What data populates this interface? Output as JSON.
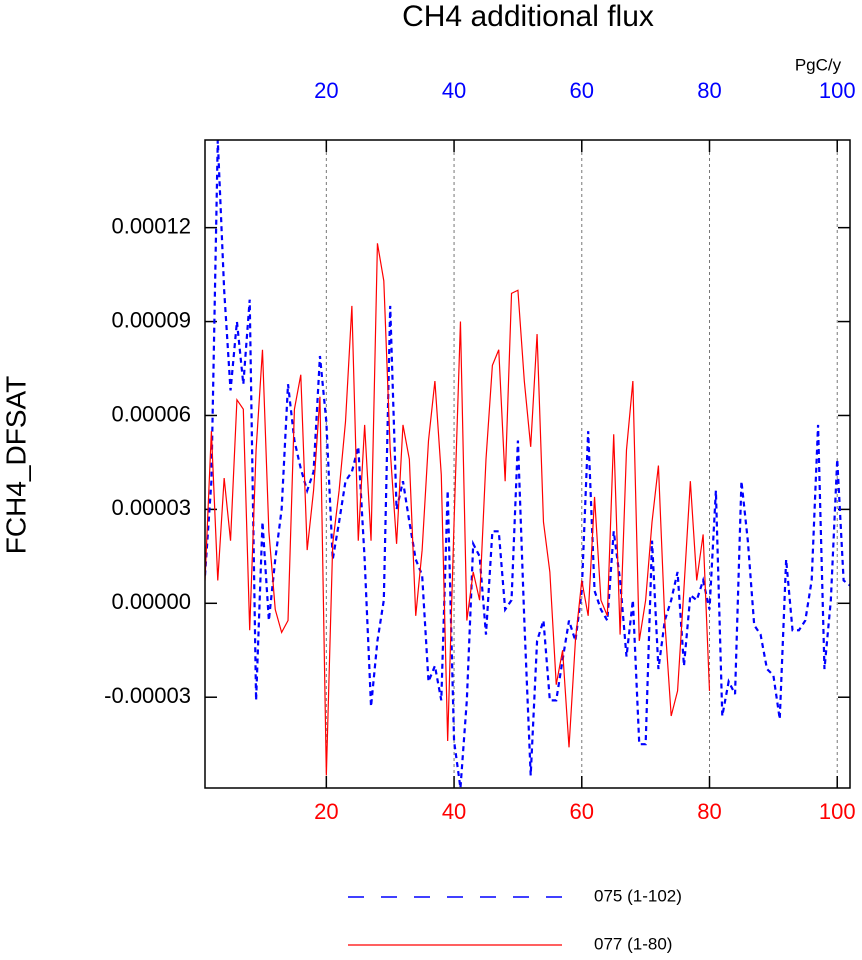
{
  "chart_data": {
    "type": "line",
    "title": "CH4 additional flux",
    "ylabel": "FCH4_DFSAT",
    "x2label": "PgC/y",
    "xlim": [
      1,
      102
    ],
    "xticks": [
      20,
      40,
      60,
      80,
      100
    ],
    "xaxis_color": "#ff0000",
    "x2lim": [
      1,
      102
    ],
    "x2ticks": [
      20,
      40,
      60,
      80,
      100
    ],
    "x2axis_color": "#0000ff",
    "ylim": [
      -5.9e-05,
      0.000148
    ],
    "yticks": [
      -3e-05,
      {
        "value": 0,
        "label": "0.00000"
      },
      3e-05,
      6e-05,
      9e-05,
      0.00012
    ],
    "grid": "x",
    "series": [
      {
        "name": "075 (1-102)",
        "color": "#0000ff",
        "dash": "dashed",
        "xaxis": "x2",
        "x": [
          1,
          2,
          3,
          4,
          5,
          6,
          7,
          8,
          9,
          10,
          11,
          12,
          13,
          14,
          15,
          16,
          17,
          18,
          19,
          20,
          21,
          22,
          23,
          24,
          25,
          26,
          27,
          28,
          29,
          30,
          31,
          32,
          33,
          34,
          35,
          36,
          37,
          38,
          39,
          40,
          41,
          42,
          43,
          44,
          45,
          46,
          47,
          48,
          49,
          50,
          51,
          52,
          53,
          54,
          55,
          56,
          57,
          58,
          59,
          60,
          61,
          62,
          63,
          64,
          65,
          66,
          67,
          68,
          69,
          70,
          71,
          72,
          73,
          74,
          75,
          76,
          77,
          78,
          79,
          80,
          81,
          82,
          83,
          84,
          85,
          86,
          87,
          88,
          89,
          90,
          91,
          92,
          93,
          94,
          95,
          96,
          97,
          98,
          99,
          100,
          101,
          102
        ],
        "values": [
          8.9e-06,
          3.9e-05,
          0.000148,
          0.0001,
          6.8e-05,
          9e-05,
          7e-05,
          9.7e-05,
          -3.1e-05,
          2.6e-05,
          -5.5e-06,
          1.4e-05,
          3e-05,
          7e-05,
          5.2e-05,
          4.3e-05,
          3.6e-05,
          4.2e-05,
          7.9e-05,
          5.8e-05,
          1.4e-05,
          2.6e-05,
          3.9e-05,
          4.2e-05,
          5e-05,
          1.4e-05,
          -3.3e-05,
          -1.2e-05,
          1e-06,
          9.5e-05,
          3e-05,
          3.9e-05,
          2.6e-05,
          1.4e-05,
          9e-06,
          -2.5e-05,
          -2e-05,
          -3.1e-05,
          3.6e-05,
          -4.4e-05,
          -5.9e-05,
          -3.1e-05,
          1.9e-05,
          1.5e-05,
          -1e-05,
          2.3e-05,
          2.3e-05,
          -2e-06,
          1e-06,
          5.2e-05,
          -5.5e-06,
          -5.5e-05,
          -1.2e-05,
          -5.5e-06,
          -3.1e-05,
          -3.1e-05,
          -1.8e-05,
          -5.5e-06,
          -1.2e-05,
          4e-06,
          5.5e-05,
          4e-06,
          -2e-06,
          -5.5e-06,
          2.3e-05,
          7.3e-06,
          -1.7e-05,
          1e-06,
          -4.5e-05,
          -4.5e-05,
          2e-05,
          -2.1e-05,
          -5.5e-06,
          1e-06,
          1e-05,
          -2e-05,
          2.6e-06,
          1e-06,
          7.3e-06,
          -2e-06,
          3.6e-05,
          -3.6e-05,
          -2.5e-05,
          -2.9e-05,
          3.9e-05,
          2e-05,
          -7e-06,
          -1e-05,
          -2.1e-05,
          -2.3e-05,
          -3.7e-05,
          1.4e-05,
          -8.6e-06,
          -8.6e-06,
          -5.5e-06,
          7.3e-06,
          5.7e-05,
          -2.1e-05,
          1e-06,
          4.6e-05,
          7.3e-06,
          5.7e-06
        ]
      },
      {
        "name": "077 (1-80)",
        "color": "#ff0000",
        "dash": "solid",
        "xaxis": "x",
        "x": [
          1,
          2,
          3,
          4,
          5,
          6,
          7,
          8,
          9,
          10,
          11,
          12,
          13,
          14,
          15,
          16,
          17,
          18,
          19,
          20,
          21,
          22,
          23,
          24,
          25,
          26,
          27,
          28,
          29,
          30,
          31,
          32,
          33,
          34,
          35,
          36,
          37,
          38,
          39,
          40,
          41,
          42,
          43,
          44,
          45,
          46,
          47,
          48,
          49,
          50,
          51,
          52,
          53,
          54,
          55,
          56,
          57,
          58,
          59,
          60,
          61,
          62,
          63,
          64,
          65,
          66,
          67,
          68,
          69,
          70,
          71,
          72,
          73,
          74,
          75,
          76,
          77,
          78,
          79,
          80
        ],
        "values": [
          7.3e-06,
          5.5e-05,
          7.3e-06,
          4e-05,
          2e-05,
          6.5e-05,
          6.2e-05,
          -8.6e-06,
          4.9e-05,
          8.1e-05,
          2.3e-05,
          -2e-06,
          -9.3e-06,
          -5.5e-06,
          6.2e-05,
          7.3e-05,
          1.7e-05,
          3.6e-05,
          6.6e-05,
          -5.5e-05,
          1.9e-05,
          3.6e-05,
          5.8e-05,
          9.5e-05,
          2e-05,
          5.7e-05,
          2e-05,
          0.000115,
          0.000103,
          4.9e-05,
          1.9e-05,
          5.7e-05,
          4.6e-05,
          -4e-06,
          1.7e-05,
          5.2e-05,
          7.1e-05,
          4.1e-05,
          -4.4e-05,
          2.6e-05,
          9e-05,
          -5.5e-06,
          1e-05,
          1e-06,
          4.6e-05,
          7.6e-05,
          8.1e-05,
          3.9e-05,
          9.9e-05,
          0.0001,
          7.1e-05,
          5e-05,
          8.6e-05,
          2.6e-05,
          1e-05,
          -2.6e-05,
          -1.5e-05,
          -4.6e-05,
          -1.2e-05,
          7.3e-06,
          -4e-06,
          3.4e-05,
          1e-06,
          -4e-06,
          5.4e-05,
          -1e-05,
          4.9e-05,
          7.1e-05,
          -1.2e-05,
          1e-06,
          2.6e-05,
          4.4e-05,
          -5.5e-06,
          -3.6e-05,
          -2.8e-05,
          4.8e-06,
          3.9e-05,
          7.3e-06,
          2.2e-05,
          -2.8e-05
        ]
      }
    ]
  }
}
